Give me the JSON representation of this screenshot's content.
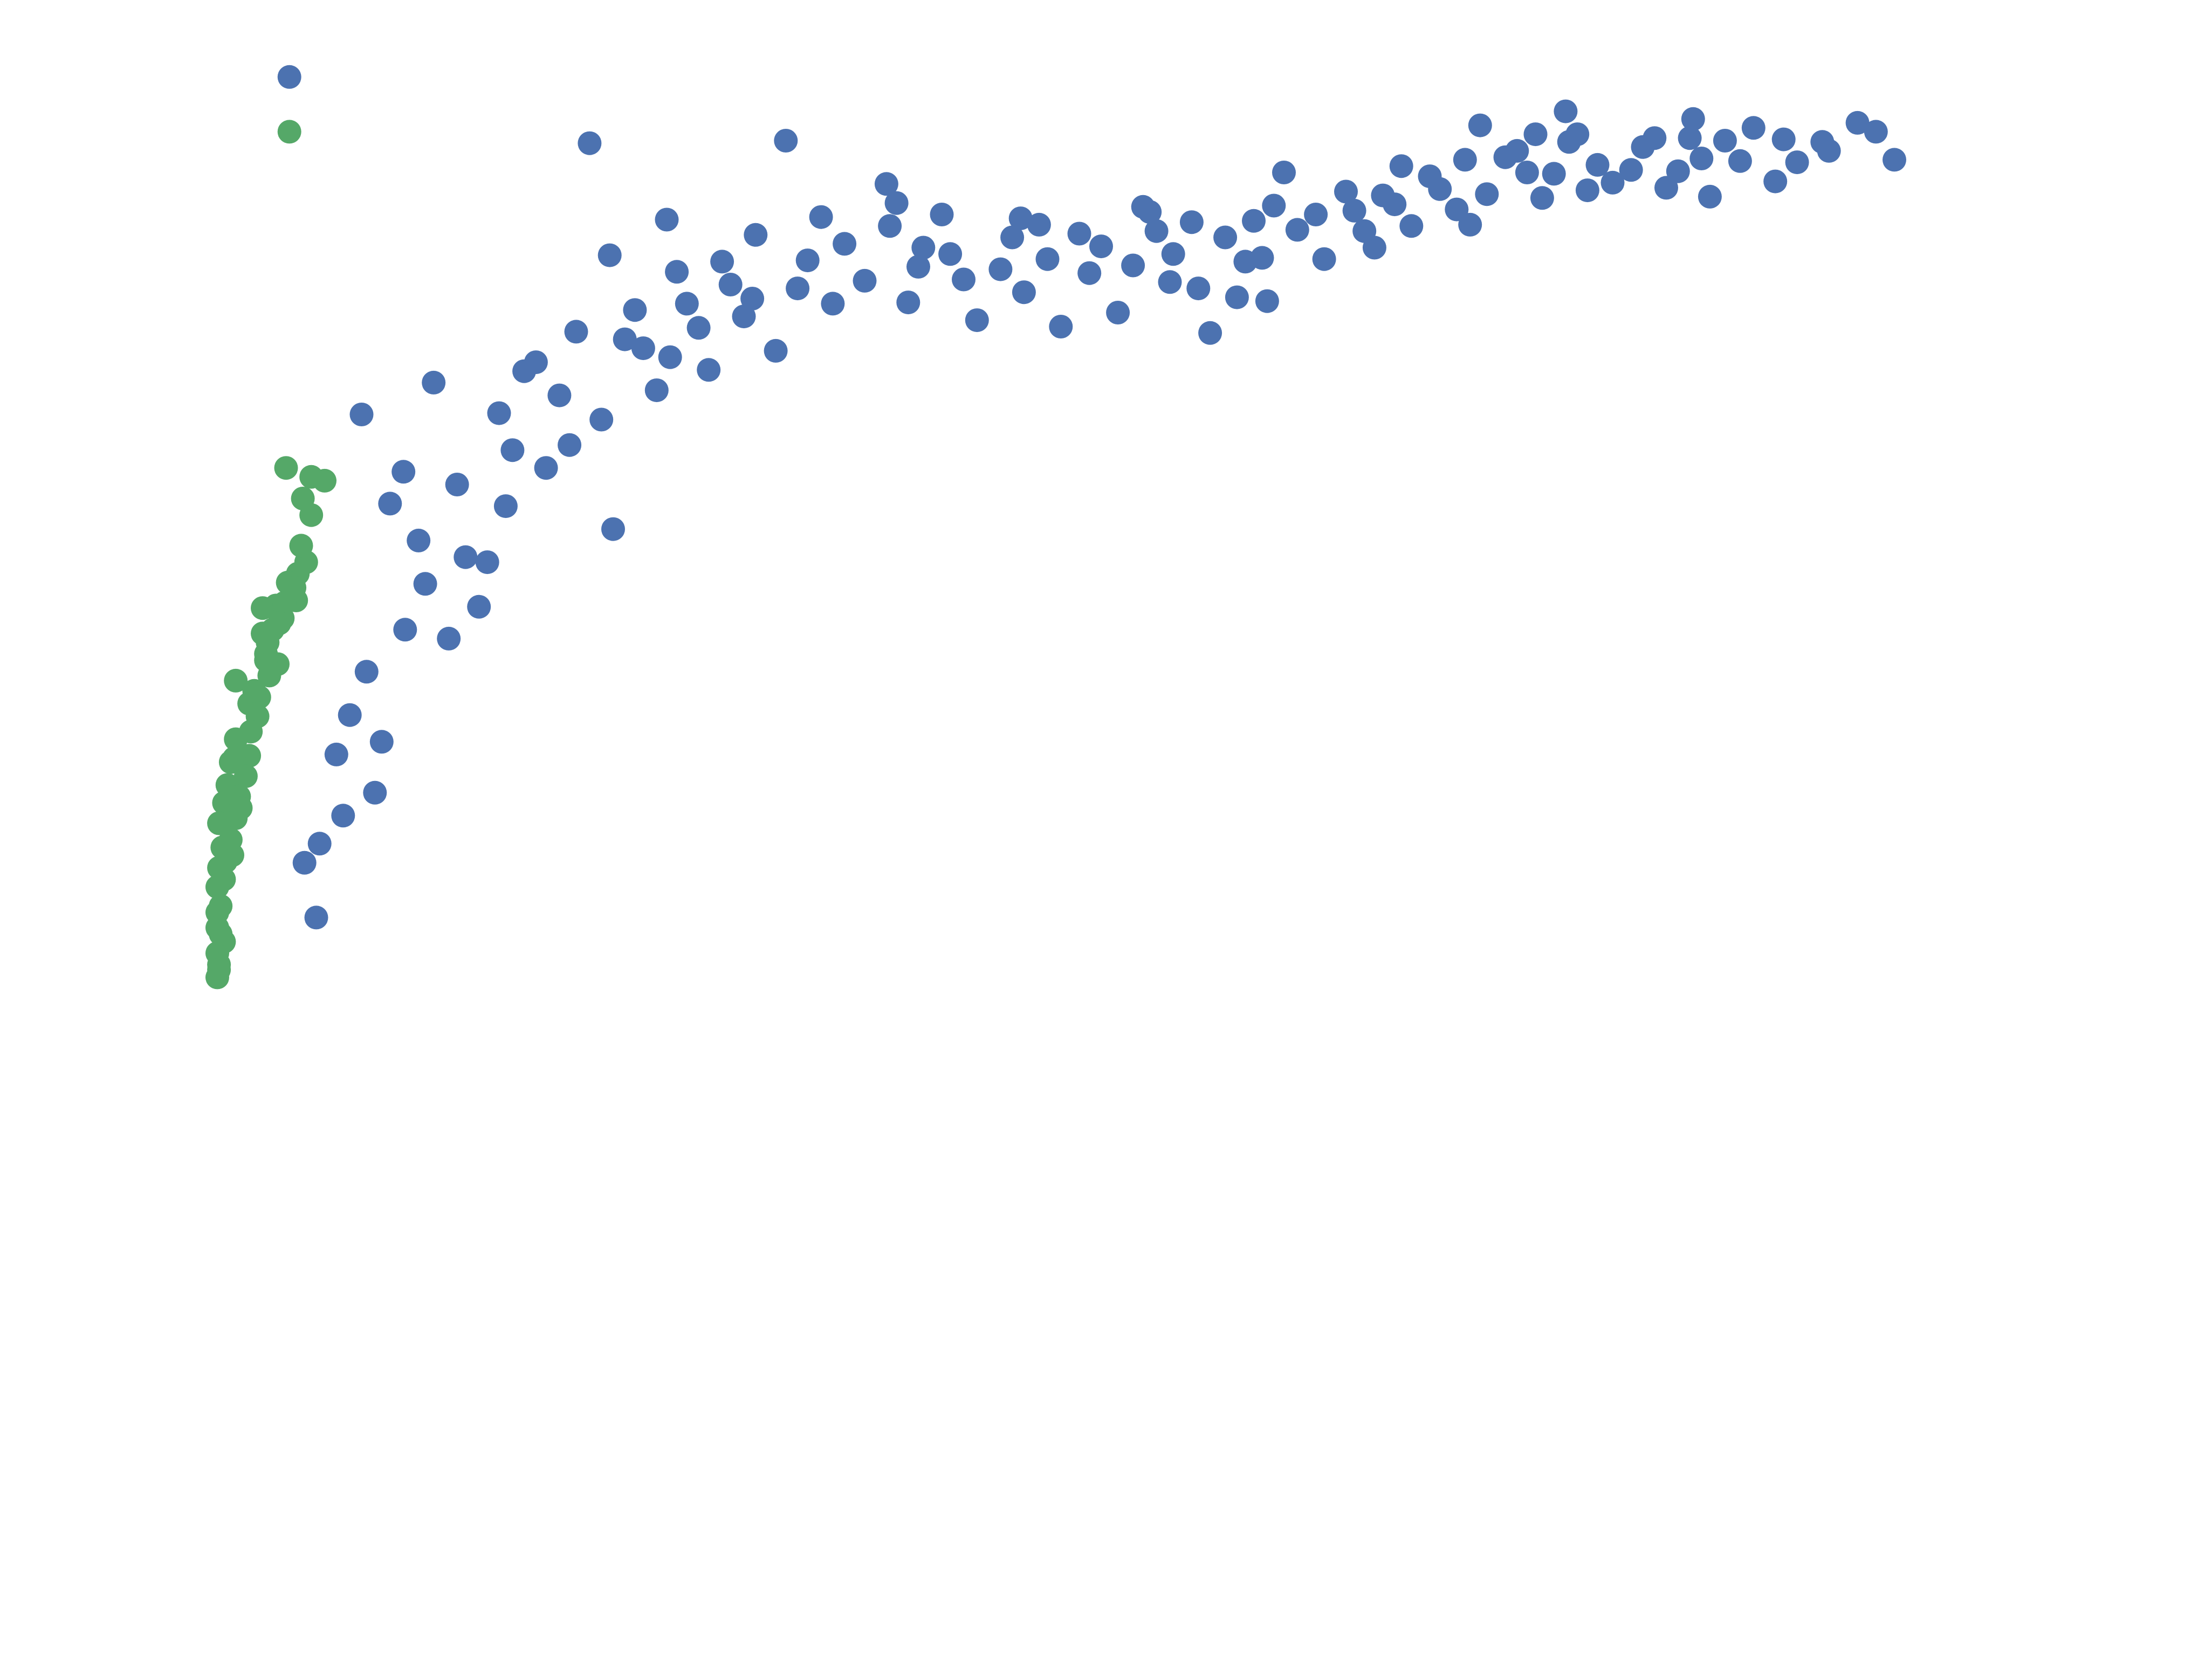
{
  "chart_data": {
    "type": "scatter",
    "title": "",
    "xlabel": "",
    "ylabel": "",
    "xlim": [
      0,
      100
    ],
    "ylim": [
      0,
      100
    ],
    "grid": false,
    "axes_visible": false,
    "legend": "none",
    "series": [
      {
        "color": "#4c72b0",
        "points": [
          [
            4.3,
            98.4
          ],
          [
            22.2,
            93.2
          ],
          [
            23.4,
            84.4
          ],
          [
            26.8,
            87.2
          ],
          [
            30.1,
            83.9
          ],
          [
            33.9,
            93.4
          ],
          [
            39.9,
            90.0
          ],
          [
            40.5,
            88.5
          ],
          [
            43.2,
            87.6
          ],
          [
            47.4,
            85.8
          ],
          [
            49.5,
            84.1
          ],
          [
            52.0,
            83.0
          ],
          [
            55.6,
            87.8
          ],
          [
            56.0,
            86.3
          ],
          [
            58.5,
            81.8
          ],
          [
            60.8,
            81.1
          ],
          [
            62.3,
            84.2
          ],
          [
            63.6,
            90.9
          ],
          [
            67.3,
            89.4
          ],
          [
            69.0,
            85.0
          ],
          [
            70.2,
            88.4
          ],
          [
            72.3,
            90.6
          ],
          [
            74.4,
            91.9
          ],
          [
            75.3,
            94.6
          ],
          [
            76.8,
            92.1
          ],
          [
            78.1,
            90.9
          ],
          [
            80.4,
            95.7
          ],
          [
            80.6,
            93.3
          ],
          [
            82.3,
            91.5
          ],
          [
            84.3,
            91.1
          ],
          [
            85.7,
            93.6
          ],
          [
            87.1,
            91.0
          ],
          [
            89.0,
            89.0
          ],
          [
            90.8,
            91.8
          ],
          [
            93.4,
            93.5
          ],
          [
            96.1,
            92.6
          ],
          [
            97.8,
            94.8
          ],
          [
            100.0,
            91.9
          ],
          [
            12.9,
            74.4
          ],
          [
            11.1,
            67.4
          ],
          [
            8.6,
            71.9
          ],
          [
            18.3,
            75.3
          ],
          [
            19.6,
            67.7
          ],
          [
            24.9,
            80.1
          ],
          [
            14.8,
            60.7
          ],
          [
            23.6,
            62.9
          ],
          [
            28.0,
            80.6
          ],
          [
            32.1,
            86.0
          ],
          [
            36.0,
            87.4
          ],
          [
            44.5,
            82.5
          ],
          [
            50.3,
            78.8
          ],
          [
            59.2,
            78.3
          ],
          [
            61.3,
            83.9
          ],
          [
            65.5,
            87.6
          ],
          [
            73.9,
            88.0
          ],
          [
            79.7,
            90.8
          ],
          [
            88.5,
            92.0
          ],
          [
            92.9,
            90.2
          ],
          [
            10.3,
            64.9
          ],
          [
            12.4,
            58.6
          ],
          [
            15.6,
            56.8
          ],
          [
            7.9,
            48.3
          ],
          [
            9.4,
            42.2
          ],
          [
            7.1,
            45.2
          ],
          [
            5.2,
            36.7
          ],
          [
            6.1,
            38.2
          ],
          [
            5.9,
            32.4
          ],
          [
            7.5,
            40.4
          ],
          [
            8.9,
            51.7
          ],
          [
            9.8,
            46.2
          ],
          [
            11.2,
            55.0
          ],
          [
            13.8,
            54.3
          ],
          [
            16.1,
            60.3
          ],
          [
            17.6,
            69.1
          ],
          [
            20.4,
            73.4
          ],
          [
            21.4,
            78.4
          ],
          [
            25.4,
            77.1
          ],
          [
            27.4,
            83.1
          ],
          [
            29.3,
            75.4
          ],
          [
            31.4,
            79.6
          ],
          [
            34.6,
            81.8
          ],
          [
            37.4,
            85.3
          ],
          [
            41.2,
            80.7
          ],
          [
            42.1,
            85.0
          ],
          [
            45.3,
            79.3
          ],
          [
            46.7,
            83.3
          ],
          [
            48.1,
            81.5
          ],
          [
            51.4,
            86.1
          ],
          [
            53.7,
            79.9
          ],
          [
            54.6,
            83.6
          ],
          [
            57.0,
            84.5
          ],
          [
            58.1,
            87.0
          ],
          [
            60.1,
            85.8
          ],
          [
            62.6,
            80.8
          ],
          [
            64.4,
            86.4
          ],
          [
            66.0,
            84.1
          ],
          [
            67.8,
            87.9
          ],
          [
            69.5,
            89.1
          ],
          [
            71.2,
            86.7
          ],
          [
            72.9,
            89.6
          ],
          [
            75.7,
            89.2
          ],
          [
            77.5,
            92.6
          ],
          [
            79.0,
            88.9
          ],
          [
            81.1,
            93.9
          ],
          [
            83.2,
            90.1
          ],
          [
            85.0,
            92.9
          ],
          [
            86.4,
            89.7
          ],
          [
            88.0,
            95.1
          ],
          [
            89.9,
            93.4
          ],
          [
            91.6,
            94.4
          ],
          [
            94.2,
            91.7
          ],
          [
            95.7,
            93.3
          ],
          [
            98.9,
            94.1
          ],
          [
            14.3,
            66.4
          ],
          [
            16.8,
            72.0
          ],
          [
            19.0,
            76.0
          ],
          [
            22.9,
            71.5
          ],
          [
            24.3,
            77.8
          ],
          [
            26.2,
            73.8
          ],
          [
            28.7,
            78.7
          ],
          [
            30.6,
            82.1
          ],
          [
            33.3,
            76.9
          ],
          [
            35.2,
            84.0
          ],
          [
            38.6,
            82.4
          ],
          [
            40.1,
            86.7
          ],
          [
            43.7,
            84.5
          ],
          [
            47.9,
            87.3
          ],
          [
            52.7,
            85.1
          ],
          [
            56.8,
            82.3
          ],
          [
            63.0,
            88.3
          ],
          [
            68.4,
            86.3
          ],
          [
            74.7,
            86.8
          ],
          [
            81.7,
            89.5
          ],
          [
            87.8,
            93.6
          ],
          [
            12.0,
            62.0
          ],
          [
            17.2,
            64.7
          ],
          [
            21.0,
            69.5
          ],
          [
            27.0,
            76.4
          ],
          [
            31.9,
            81.0
          ],
          [
            36.7,
            80.6
          ],
          [
            41.8,
            83.5
          ],
          [
            49.0,
            86.8
          ],
          [
            55.2,
            88.2
          ],
          [
            61.8,
            87.1
          ],
          [
            70.6,
            91.4
          ],
          [
            78.6,
            93.9
          ]
        ]
      },
      {
        "color": "#55a868",
        "points": [
          [
            4.3,
            94.1
          ],
          [
            4.1,
            67.7
          ],
          [
            5.6,
            67.0
          ],
          [
            6.4,
            66.7
          ],
          [
            5.1,
            65.3
          ],
          [
            5.3,
            60.3
          ],
          [
            4.8,
            59.4
          ],
          [
            4.2,
            58.7
          ],
          [
            4.7,
            57.3
          ],
          [
            3.5,
            56.9
          ],
          [
            2.7,
            56.7
          ],
          [
            3.9,
            55.9
          ],
          [
            3.3,
            55.0
          ],
          [
            2.7,
            54.7
          ],
          [
            2.9,
            53.1
          ],
          [
            3.6,
            52.3
          ],
          [
            3.1,
            51.4
          ],
          [
            1.1,
            51.0
          ],
          [
            2.5,
            49.7
          ],
          [
            1.9,
            49.2
          ],
          [
            2.4,
            48.2
          ],
          [
            2.0,
            47.0
          ],
          [
            1.1,
            46.4
          ],
          [
            1.9,
            45.1
          ],
          [
            0.8,
            44.6
          ],
          [
            1.7,
            43.5
          ],
          [
            0.6,
            42.8
          ],
          [
            1.3,
            41.9
          ],
          [
            0.4,
            41.4
          ],
          [
            1.1,
            40.2
          ],
          [
            0.1,
            39.8
          ],
          [
            0.8,
            38.5
          ],
          [
            0.3,
            37.9
          ],
          [
            0.9,
            37.3
          ],
          [
            0.1,
            36.3
          ],
          [
            0.4,
            35.4
          ],
          [
            0.0,
            34.8
          ],
          [
            0.2,
            33.3
          ],
          [
            0.0,
            32.8
          ],
          [
            0.0,
            31.6
          ],
          [
            0.4,
            30.5
          ],
          [
            0.0,
            29.6
          ],
          [
            0.1,
            28.7
          ],
          [
            0.0,
            27.7
          ],
          [
            1.4,
            41.0
          ],
          [
            2.2,
            50.2
          ],
          [
            2.9,
            52.6
          ],
          [
            3.0,
            54.0
          ],
          [
            4.0,
            57.1
          ],
          [
            4.6,
            58.3
          ],
          [
            5.0,
            61.6
          ],
          [
            5.6,
            64.0
          ],
          [
            3.7,
            55.5
          ],
          [
            1.0,
            44.9
          ],
          [
            0.5,
            36.8
          ],
          [
            0.2,
            31.1
          ],
          [
            0.1,
            28.3
          ]
        ]
      }
    ]
  }
}
